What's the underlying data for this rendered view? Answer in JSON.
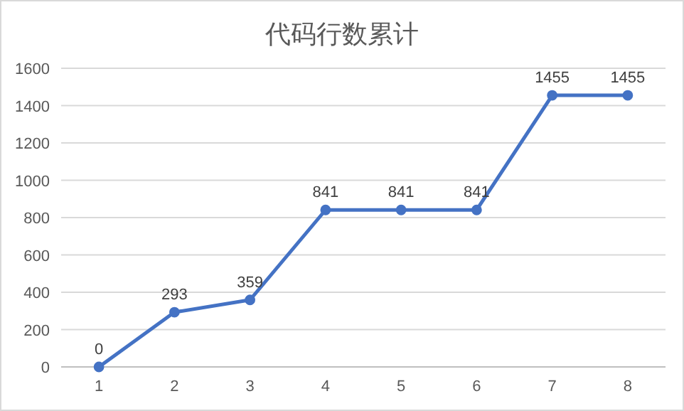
{
  "chart_data": {
    "type": "line",
    "title": "代码行数累计",
    "categories": [
      "1",
      "2",
      "3",
      "4",
      "5",
      "6",
      "7",
      "8"
    ],
    "series": [
      {
        "color": "#4472c4",
        "values": [
          0,
          293,
          359,
          841,
          841,
          841,
          1455,
          1455
        ]
      }
    ],
    "ylim": [
      0,
      1600
    ],
    "yticks": [
      0,
      200,
      400,
      600,
      800,
      1000,
      1200,
      1400,
      1600
    ],
    "grid": "y",
    "marker": "circle",
    "data_labels": true
  }
}
